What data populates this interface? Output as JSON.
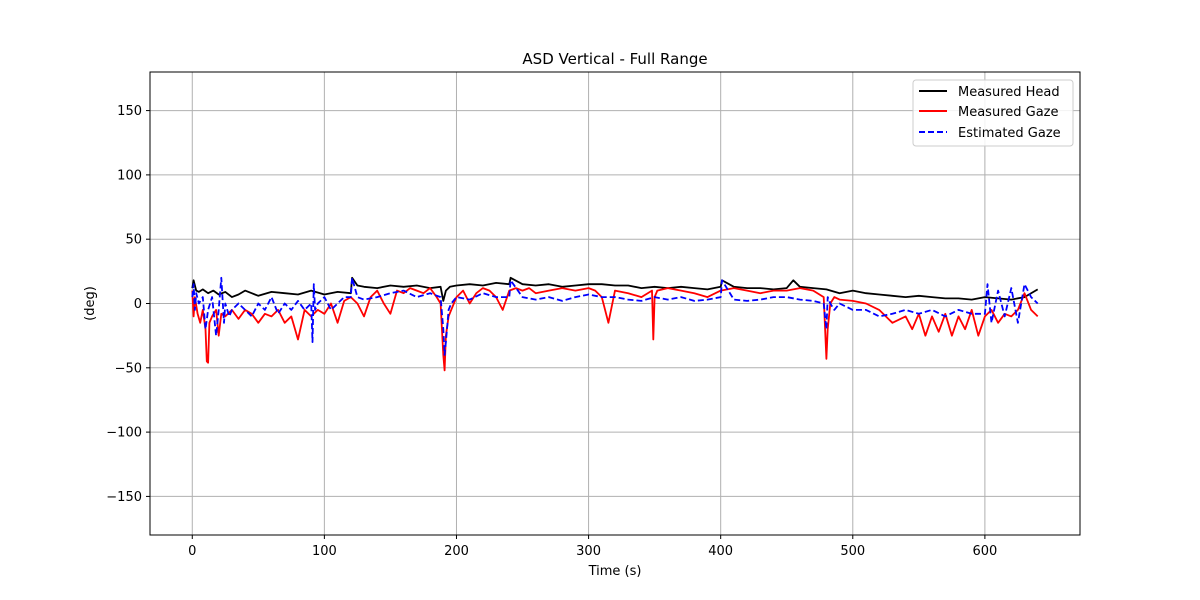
{
  "chart_data": {
    "type": "line",
    "title": "ASD Vertical - Full Range",
    "xlabel": "Time (s)",
    "ylabel": "(deg)",
    "xlim": [
      -32,
      672
    ],
    "ylim": [
      -180,
      180
    ],
    "xticks": [
      0,
      100,
      200,
      300,
      400,
      500,
      600
    ],
    "yticks": [
      -150,
      -100,
      -50,
      0,
      50,
      100,
      150
    ],
    "xtick_labels": [
      "0",
      "100",
      "200",
      "300",
      "400",
      "500",
      "600"
    ],
    "ytick_labels": [
      "−150",
      "−100",
      "−50",
      "0",
      "50",
      "100",
      "150"
    ],
    "grid": true,
    "legend_position": "top-right",
    "series": [
      {
        "name": "Measured Head",
        "color": "#000000",
        "dash": "solid",
        "x": [
          0,
          1,
          3,
          5,
          8,
          12,
          16,
          20,
          25,
          30,
          35,
          40,
          45,
          50,
          60,
          70,
          80,
          90,
          100,
          110,
          120,
          121,
          125,
          130,
          140,
          150,
          160,
          170,
          180,
          188,
          190,
          192,
          195,
          200,
          210,
          220,
          230,
          240,
          241,
          250,
          260,
          270,
          280,
          290,
          300,
          310,
          320,
          330,
          340,
          350,
          360,
          370,
          380,
          390,
          400,
          401,
          410,
          420,
          430,
          440,
          450,
          455,
          460,
          470,
          480,
          490,
          500,
          510,
          520,
          530,
          540,
          550,
          560,
          570,
          580,
          590,
          600,
          610,
          620,
          630,
          640
        ],
        "y": [
          12,
          18,
          10,
          9,
          11,
          8,
          10,
          7,
          9,
          5,
          7,
          10,
          8,
          6,
          9,
          8,
          7,
          10,
          7,
          9,
          8,
          20,
          14,
          13,
          12,
          14,
          13,
          14,
          12,
          13,
          2,
          10,
          13,
          14,
          15,
          14,
          16,
          15,
          20,
          15,
          14,
          15,
          13,
          14,
          15,
          15,
          14,
          14,
          12,
          13,
          12,
          13,
          12,
          11,
          13,
          18,
          13,
          12,
          12,
          11,
          12,
          18,
          13,
          12,
          11,
          8,
          10,
          8,
          7,
          6,
          5,
          6,
          5,
          4,
          4,
          3,
          5,
          4,
          3,
          5,
          11
        ]
      },
      {
        "name": "Measured Gaze",
        "color": "#ff0000",
        "dash": "solid",
        "x": [
          0,
          1,
          2,
          4,
          6,
          8,
          10,
          11,
          12,
          13,
          15,
          18,
          20,
          22,
          25,
          30,
          35,
          40,
          45,
          50,
          55,
          60,
          65,
          70,
          75,
          80,
          85,
          90,
          95,
          100,
          105,
          110,
          115,
          120,
          125,
          130,
          135,
          140,
          145,
          150,
          155,
          160,
          165,
          170,
          175,
          180,
          185,
          188,
          190,
          191,
          192,
          194,
          196,
          200,
          205,
          210,
          215,
          220,
          225,
          230,
          235,
          240,
          245,
          250,
          255,
          260,
          270,
          280,
          290,
          300,
          305,
          310,
          315,
          320,
          330,
          340,
          348,
          349,
          350,
          352,
          360,
          370,
          380,
          390,
          400,
          410,
          420,
          430,
          440,
          450,
          460,
          470,
          478,
          480,
          481,
          483,
          486,
          490,
          500,
          510,
          520,
          525,
          530,
          540,
          545,
          550,
          555,
          560,
          565,
          570,
          575,
          580,
          585,
          590,
          595,
          600,
          605,
          610,
          615,
          620,
          625,
          630,
          635,
          640
        ],
        "y": [
          10,
          -10,
          5,
          -8,
          -15,
          -5,
          -20,
          -45,
          -46,
          -15,
          -10,
          -5,
          -25,
          -8,
          -10,
          -5,
          -12,
          -5,
          -8,
          -15,
          -8,
          -10,
          -5,
          -15,
          -10,
          -28,
          -5,
          -10,
          -5,
          -8,
          0,
          -15,
          2,
          5,
          0,
          -10,
          5,
          10,
          0,
          -8,
          10,
          8,
          12,
          10,
          8,
          12,
          5,
          0,
          -40,
          -52,
          -25,
          -10,
          -5,
          5,
          10,
          0,
          8,
          12,
          10,
          5,
          -5,
          10,
          12,
          10,
          12,
          8,
          10,
          12,
          10,
          12,
          10,
          5,
          -15,
          10,
          8,
          5,
          10,
          -28,
          5,
          10,
          12,
          10,
          8,
          5,
          10,
          12,
          10,
          8,
          10,
          10,
          12,
          10,
          5,
          -43,
          -20,
          0,
          5,
          3,
          2,
          0,
          -5,
          -10,
          -15,
          -10,
          -20,
          -8,
          -25,
          -10,
          -22,
          -8,
          -25,
          -10,
          -20,
          -5,
          -25,
          -10,
          -5,
          -15,
          -8,
          -10,
          -5,
          8,
          -5,
          -10
        ]
      },
      {
        "name": "Estimated Gaze",
        "color": "#0000ff",
        "dash": "dashed",
        "x": [
          0,
          1,
          2,
          3,
          5,
          8,
          10,
          12,
          15,
          18,
          20,
          22,
          24,
          25,
          28,
          30,
          35,
          40,
          45,
          50,
          55,
          60,
          65,
          70,
          75,
          80,
          85,
          90,
          91,
          92,
          93,
          95,
          100,
          105,
          110,
          115,
          120,
          121,
          125,
          130,
          140,
          150,
          160,
          170,
          180,
          188,
          190,
          191,
          192,
          194,
          196,
          200,
          210,
          220,
          230,
          240,
          241,
          250,
          260,
          270,
          280,
          290,
          300,
          310,
          320,
          330,
          340,
          350,
          360,
          370,
          380,
          390,
          400,
          401,
          410,
          420,
          430,
          440,
          450,
          460,
          470,
          478,
          480,
          481,
          483,
          486,
          490,
          500,
          510,
          520,
          530,
          540,
          550,
          560,
          570,
          580,
          590,
          600,
          602,
          605,
          610,
          615,
          620,
          625,
          630,
          635,
          640
        ],
        "y": [
          5,
          15,
          -5,
          8,
          0,
          5,
          -20,
          -5,
          5,
          -25,
          -5,
          20,
          -15,
          0,
          -10,
          -5,
          0,
          -5,
          -10,
          0,
          -5,
          5,
          -8,
          0,
          -5,
          2,
          -5,
          0,
          -30,
          15,
          -5,
          0,
          5,
          -5,
          0,
          5,
          5,
          20,
          5,
          3,
          5,
          8,
          10,
          5,
          8,
          5,
          -20,
          -40,
          -30,
          -5,
          0,
          5,
          3,
          8,
          5,
          5,
          18,
          5,
          3,
          5,
          2,
          5,
          7,
          5,
          5,
          3,
          2,
          5,
          3,
          5,
          2,
          3,
          5,
          18,
          3,
          2,
          3,
          5,
          5,
          3,
          2,
          0,
          -20,
          5,
          0,
          -5,
          0,
          -5,
          -5,
          -10,
          -8,
          -5,
          -8,
          -5,
          -10,
          -5,
          -8,
          -8,
          15,
          -15,
          10,
          -10,
          12,
          -15,
          15,
          5,
          0
        ]
      }
    ]
  }
}
